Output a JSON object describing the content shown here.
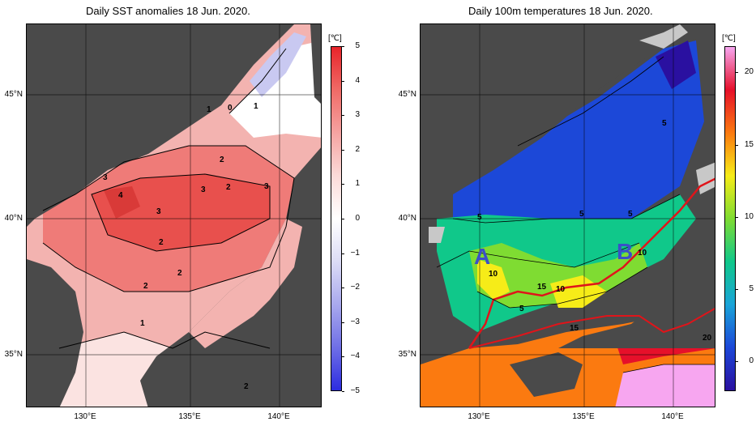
{
  "left_panel": {
    "title": "Daily SST anomalies 18 Jun. 2020.",
    "colorbar": {
      "unit": "[℃]",
      "ticks": [
        "5",
        "4",
        "3",
        "2",
        "1",
        "0",
        "−1",
        "−2",
        "−3",
        "−4",
        "−5"
      ],
      "colors": [
        "#e8242a",
        "#f06a66",
        "#f5a3a1",
        "#fbdad8",
        "#ffffff",
        "#dcdcf6",
        "#a9a9ee",
        "#6f6fe6",
        "#2c2ce0"
      ]
    },
    "contour_labels": [
      "1",
      "0",
      "1",
      "2",
      "3",
      "4",
      "3",
      "2",
      "3",
      "3",
      "2",
      "2",
      "2",
      "1",
      "2"
    ]
  },
  "right_panel": {
    "title": "Daily 100m temperatures 18 Jun. 2020.",
    "colorbar": {
      "unit": "[℃]",
      "ticks": [
        "20",
        "15",
        "10",
        "5",
        "0"
      ],
      "colors": [
        "#f7a6f0",
        "#e6102a",
        "#fb7a10",
        "#f6ec18",
        "#7fdc32",
        "#10c88a",
        "#1aa4d8",
        "#1c48d8",
        "#2a10a0"
      ]
    },
    "contour_labels": [
      "5",
      "5",
      "5",
      "5",
      "10",
      "10",
      "10",
      "15",
      "5",
      "15",
      "20"
    ],
    "markers": [
      "A",
      "B"
    ]
  },
  "axes": {
    "lat_labels": [
      "45°N",
      "40°N",
      "35°N"
    ],
    "lon_labels": [
      "130°E",
      "135°E",
      "140°E"
    ]
  },
  "colors": {
    "land": "#4a4a4a",
    "nodata": "#c8c8c8",
    "gulf_stream_line": "#e0141a"
  }
}
